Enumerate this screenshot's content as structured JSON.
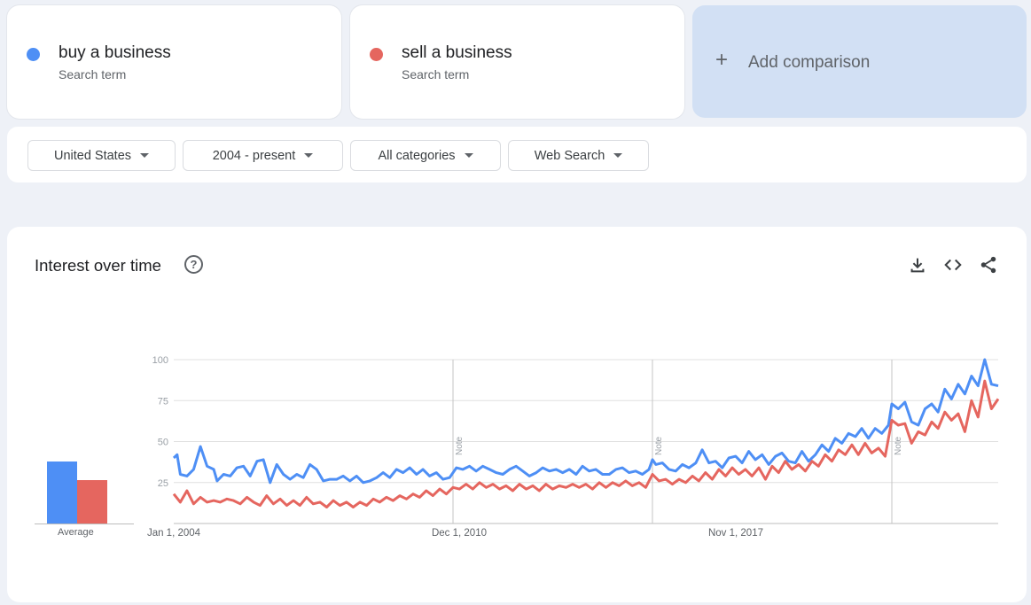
{
  "terms": [
    {
      "name": "buy a business",
      "sub": "Search term",
      "color": "#4e8ff5"
    },
    {
      "name": "sell a business",
      "sub": "Search term",
      "color": "#e5665f"
    }
  ],
  "add_comparison": {
    "icon": "plus-icon",
    "label": "Add comparison"
  },
  "filters": {
    "region": "United States",
    "time": "2004 - present",
    "category": "All categories",
    "search_type": "Web Search"
  },
  "chart_card": {
    "title": "Interest over time",
    "help_icon": "?",
    "icons": [
      "download-icon",
      "embed-icon",
      "share-icon"
    ]
  },
  "chart_data": {
    "type": "line",
    "x_tick_labels": [
      "Jan 1, 2004",
      "Dec 1, 2010",
      "Nov 1, 2017"
    ],
    "y_ticks": [
      25,
      50,
      75,
      100
    ],
    "ylim": [
      0,
      100
    ],
    "grid": true,
    "notes": [
      {
        "label": "Note",
        "date": "2011-01"
      },
      {
        "label": "Note",
        "date": "2016-01"
      },
      {
        "label": "Note",
        "date": "2022-01"
      }
    ],
    "average_label": "Average",
    "averages": [
      {
        "series": "buy a business",
        "value": 39
      },
      {
        "series": "sell a business",
        "value": 27
      }
    ],
    "series": [
      {
        "name": "buy a business",
        "color": "#4e8ff5",
        "points": [
          [
            "2004-01",
            40
          ],
          [
            "2004-02",
            42
          ],
          [
            "2004-03",
            30
          ],
          [
            "2004-05",
            29
          ],
          [
            "2004-07",
            33
          ],
          [
            "2004-09",
            47
          ],
          [
            "2004-11",
            35
          ],
          [
            "2005-01",
            33
          ],
          [
            "2005-02",
            26
          ],
          [
            "2005-04",
            30
          ],
          [
            "2005-06",
            29
          ],
          [
            "2005-08",
            34
          ],
          [
            "2005-10",
            35
          ],
          [
            "2005-12",
            29
          ],
          [
            "2006-02",
            38
          ],
          [
            "2006-04",
            39
          ],
          [
            "2006-06",
            25
          ],
          [
            "2006-08",
            36
          ],
          [
            "2006-10",
            30
          ],
          [
            "2006-12",
            27
          ],
          [
            "2007-02",
            30
          ],
          [
            "2007-04",
            28
          ],
          [
            "2007-06",
            36
          ],
          [
            "2007-08",
            33
          ],
          [
            "2007-10",
            26
          ],
          [
            "2007-12",
            27
          ],
          [
            "2008-02",
            27
          ],
          [
            "2008-04",
            29
          ],
          [
            "2008-06",
            26
          ],
          [
            "2008-08",
            29
          ],
          [
            "2008-10",
            25
          ],
          [
            "2008-12",
            26
          ],
          [
            "2009-02",
            28
          ],
          [
            "2009-04",
            31
          ],
          [
            "2009-06",
            28
          ],
          [
            "2009-08",
            33
          ],
          [
            "2009-10",
            31
          ],
          [
            "2009-12",
            34
          ],
          [
            "2010-02",
            30
          ],
          [
            "2010-04",
            33
          ],
          [
            "2010-06",
            29
          ],
          [
            "2010-08",
            31
          ],
          [
            "2010-10",
            27
          ],
          [
            "2010-12",
            28
          ],
          [
            "2011-02",
            34
          ],
          [
            "2011-04",
            33
          ],
          [
            "2011-06",
            35
          ],
          [
            "2011-08",
            32
          ],
          [
            "2011-10",
            35
          ],
          [
            "2011-12",
            33
          ],
          [
            "2012-02",
            31
          ],
          [
            "2012-04",
            30
          ],
          [
            "2012-06",
            33
          ],
          [
            "2012-08",
            35
          ],
          [
            "2012-10",
            32
          ],
          [
            "2012-12",
            29
          ],
          [
            "2013-02",
            31
          ],
          [
            "2013-04",
            34
          ],
          [
            "2013-06",
            32
          ],
          [
            "2013-08",
            33
          ],
          [
            "2013-10",
            31
          ],
          [
            "2013-12",
            33
          ],
          [
            "2014-02",
            30
          ],
          [
            "2014-04",
            35
          ],
          [
            "2014-06",
            32
          ],
          [
            "2014-08",
            33
          ],
          [
            "2014-10",
            30
          ],
          [
            "2014-12",
            30
          ],
          [
            "2015-02",
            33
          ],
          [
            "2015-04",
            34
          ],
          [
            "2015-06",
            31
          ],
          [
            "2015-08",
            32
          ],
          [
            "2015-10",
            30
          ],
          [
            "2015-12",
            33
          ],
          [
            "2016-01",
            39
          ],
          [
            "2016-02",
            36
          ],
          [
            "2016-04",
            37
          ],
          [
            "2016-06",
            33
          ],
          [
            "2016-08",
            32
          ],
          [
            "2016-10",
            36
          ],
          [
            "2016-12",
            34
          ],
          [
            "2017-02",
            37
          ],
          [
            "2017-04",
            45
          ],
          [
            "2017-06",
            37
          ],
          [
            "2017-08",
            38
          ],
          [
            "2017-10",
            34
          ],
          [
            "2017-12",
            40
          ],
          [
            "2018-02",
            41
          ],
          [
            "2018-04",
            37
          ],
          [
            "2018-06",
            44
          ],
          [
            "2018-08",
            39
          ],
          [
            "2018-10",
            42
          ],
          [
            "2018-12",
            36
          ],
          [
            "2019-02",
            41
          ],
          [
            "2019-04",
            43
          ],
          [
            "2019-06",
            38
          ],
          [
            "2019-08",
            37
          ],
          [
            "2019-10",
            44
          ],
          [
            "2019-12",
            38
          ],
          [
            "2020-02",
            42
          ],
          [
            "2020-04",
            48
          ],
          [
            "2020-06",
            44
          ],
          [
            "2020-08",
            52
          ],
          [
            "2020-10",
            49
          ],
          [
            "2020-12",
            55
          ],
          [
            "2021-02",
            53
          ],
          [
            "2021-04",
            58
          ],
          [
            "2021-06",
            52
          ],
          [
            "2021-08",
            58
          ],
          [
            "2021-10",
            55
          ],
          [
            "2021-12",
            60
          ],
          [
            "2022-01",
            73
          ],
          [
            "2022-03",
            70
          ],
          [
            "2022-05",
            74
          ],
          [
            "2022-07",
            62
          ],
          [
            "2022-09",
            60
          ],
          [
            "2022-11",
            70
          ],
          [
            "2023-01",
            73
          ],
          [
            "2023-03",
            68
          ],
          [
            "2023-05",
            82
          ],
          [
            "2023-07",
            76
          ],
          [
            "2023-09",
            85
          ],
          [
            "2023-11",
            79
          ],
          [
            "2024-01",
            90
          ],
          [
            "2024-03",
            84
          ],
          [
            "2024-05",
            100
          ],
          [
            "2024-07",
            85
          ],
          [
            "2024-09",
            84
          ]
        ]
      },
      {
        "name": "sell a business",
        "color": "#e5665f",
        "points": [
          [
            "2004-01",
            18
          ],
          [
            "2004-03",
            13
          ],
          [
            "2004-05",
            20
          ],
          [
            "2004-07",
            12
          ],
          [
            "2004-09",
            16
          ],
          [
            "2004-11",
            13
          ],
          [
            "2005-01",
            14
          ],
          [
            "2005-03",
            13
          ],
          [
            "2005-05",
            15
          ],
          [
            "2005-07",
            14
          ],
          [
            "2005-09",
            12
          ],
          [
            "2005-11",
            16
          ],
          [
            "2006-01",
            13
          ],
          [
            "2006-03",
            11
          ],
          [
            "2006-05",
            17
          ],
          [
            "2006-07",
            12
          ],
          [
            "2006-09",
            15
          ],
          [
            "2006-11",
            11
          ],
          [
            "2007-01",
            14
          ],
          [
            "2007-03",
            11
          ],
          [
            "2007-05",
            16
          ],
          [
            "2007-07",
            12
          ],
          [
            "2007-09",
            13
          ],
          [
            "2007-11",
            10
          ],
          [
            "2008-01",
            14
          ],
          [
            "2008-03",
            11
          ],
          [
            "2008-05",
            13
          ],
          [
            "2008-07",
            10
          ],
          [
            "2008-09",
            13
          ],
          [
            "2008-11",
            11
          ],
          [
            "2009-01",
            15
          ],
          [
            "2009-03",
            13
          ],
          [
            "2009-05",
            16
          ],
          [
            "2009-07",
            14
          ],
          [
            "2009-09",
            17
          ],
          [
            "2009-11",
            15
          ],
          [
            "2010-01",
            18
          ],
          [
            "2010-03",
            16
          ],
          [
            "2010-05",
            20
          ],
          [
            "2010-07",
            17
          ],
          [
            "2010-09",
            21
          ],
          [
            "2010-11",
            18
          ],
          [
            "2011-01",
            22
          ],
          [
            "2011-03",
            21
          ],
          [
            "2011-05",
            24
          ],
          [
            "2011-07",
            21
          ],
          [
            "2011-09",
            25
          ],
          [
            "2011-11",
            22
          ],
          [
            "2012-01",
            24
          ],
          [
            "2012-03",
            21
          ],
          [
            "2012-05",
            23
          ],
          [
            "2012-07",
            20
          ],
          [
            "2012-09",
            24
          ],
          [
            "2012-11",
            21
          ],
          [
            "2013-01",
            23
          ],
          [
            "2013-03",
            20
          ],
          [
            "2013-05",
            24
          ],
          [
            "2013-07",
            21
          ],
          [
            "2013-09",
            23
          ],
          [
            "2013-11",
            22
          ],
          [
            "2014-01",
            24
          ],
          [
            "2014-03",
            22
          ],
          [
            "2014-05",
            24
          ],
          [
            "2014-07",
            21
          ],
          [
            "2014-09",
            25
          ],
          [
            "2014-11",
            22
          ],
          [
            "2015-01",
            25
          ],
          [
            "2015-03",
            23
          ],
          [
            "2015-05",
            26
          ],
          [
            "2015-07",
            23
          ],
          [
            "2015-09",
            25
          ],
          [
            "2015-11",
            22
          ],
          [
            "2016-01",
            30
          ],
          [
            "2016-03",
            26
          ],
          [
            "2016-05",
            27
          ],
          [
            "2016-07",
            24
          ],
          [
            "2016-09",
            27
          ],
          [
            "2016-11",
            25
          ],
          [
            "2017-01",
            29
          ],
          [
            "2017-03",
            26
          ],
          [
            "2017-05",
            31
          ],
          [
            "2017-07",
            27
          ],
          [
            "2017-09",
            33
          ],
          [
            "2017-11",
            29
          ],
          [
            "2018-01",
            34
          ],
          [
            "2018-03",
            30
          ],
          [
            "2018-05",
            33
          ],
          [
            "2018-07",
            29
          ],
          [
            "2018-09",
            34
          ],
          [
            "2018-11",
            27
          ],
          [
            "2019-01",
            35
          ],
          [
            "2019-03",
            31
          ],
          [
            "2019-05",
            38
          ],
          [
            "2019-07",
            33
          ],
          [
            "2019-09",
            36
          ],
          [
            "2019-11",
            32
          ],
          [
            "2020-01",
            38
          ],
          [
            "2020-03",
            35
          ],
          [
            "2020-05",
            42
          ],
          [
            "2020-07",
            38
          ],
          [
            "2020-09",
            45
          ],
          [
            "2020-11",
            42
          ],
          [
            "2021-01",
            48
          ],
          [
            "2021-03",
            42
          ],
          [
            "2021-05",
            49
          ],
          [
            "2021-07",
            43
          ],
          [
            "2021-09",
            46
          ],
          [
            "2021-11",
            41
          ],
          [
            "2022-01",
            63
          ],
          [
            "2022-03",
            60
          ],
          [
            "2022-05",
            61
          ],
          [
            "2022-07",
            49
          ],
          [
            "2022-09",
            56
          ],
          [
            "2022-11",
            54
          ],
          [
            "2023-01",
            62
          ],
          [
            "2023-03",
            58
          ],
          [
            "2023-05",
            68
          ],
          [
            "2023-07",
            63
          ],
          [
            "2023-09",
            67
          ],
          [
            "2023-11",
            56
          ],
          [
            "2024-01",
            75
          ],
          [
            "2024-03",
            65
          ],
          [
            "2024-05",
            87
          ],
          [
            "2024-07",
            70
          ],
          [
            "2024-09",
            76
          ]
        ]
      }
    ]
  }
}
